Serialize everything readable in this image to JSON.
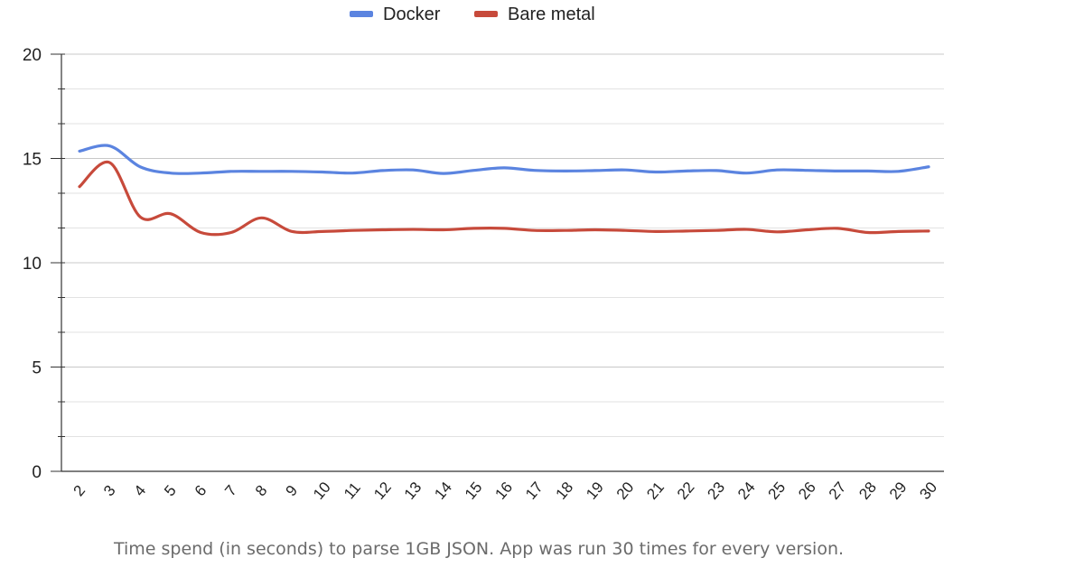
{
  "chart_data": {
    "type": "line",
    "x": [
      2,
      3,
      4,
      5,
      6,
      7,
      8,
      9,
      10,
      11,
      12,
      13,
      14,
      15,
      16,
      17,
      18,
      19,
      20,
      21,
      22,
      23,
      24,
      25,
      26,
      27,
      28,
      29,
      30
    ],
    "series": [
      {
        "name": "Docker",
        "color": "#5b84e0",
        "values": [
          15.35,
          15.6,
          14.6,
          14.3,
          14.3,
          14.38,
          14.38,
          14.38,
          14.35,
          14.3,
          14.42,
          14.45,
          14.28,
          14.43,
          14.55,
          14.43,
          14.4,
          14.42,
          14.45,
          14.35,
          14.4,
          14.42,
          14.3,
          14.45,
          14.43,
          14.4,
          14.4,
          14.38,
          14.6
        ]
      },
      {
        "name": "Bare metal",
        "color": "#c74a3b",
        "values": [
          13.65,
          14.8,
          12.2,
          12.35,
          11.45,
          11.45,
          12.15,
          11.5,
          11.5,
          11.55,
          11.58,
          11.6,
          11.58,
          11.65,
          11.65,
          11.55,
          11.55,
          11.58,
          11.55,
          11.5,
          11.52,
          11.55,
          11.6,
          11.48,
          11.58,
          11.65,
          11.45,
          11.5,
          11.52
        ]
      }
    ],
    "ylim": [
      0,
      20
    ],
    "yticks": [
      0,
      5,
      10,
      15,
      20
    ],
    "grid": true,
    "legend_position": "top-center",
    "caption": "Time spend (in seconds) to parse 1GB JSON. App was run 30 times for every version."
  }
}
